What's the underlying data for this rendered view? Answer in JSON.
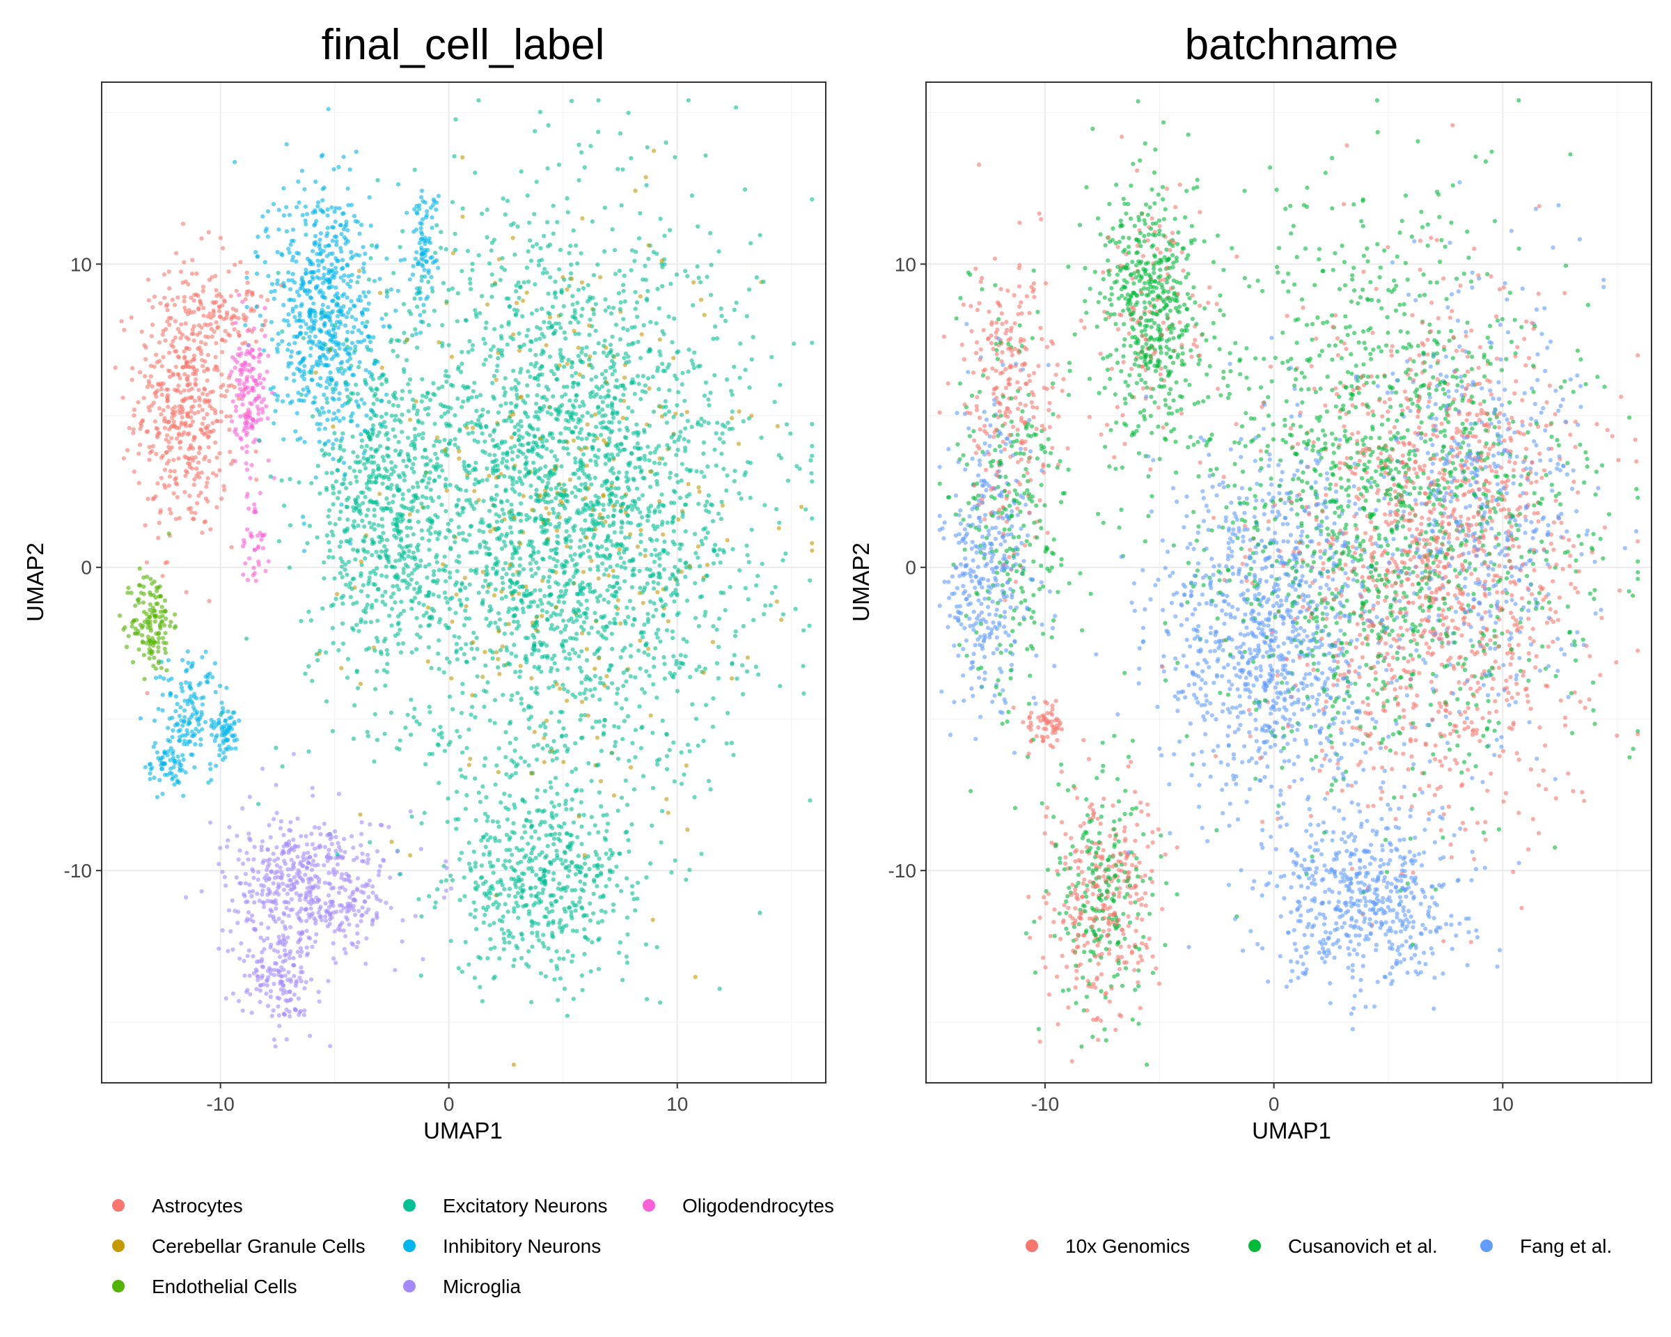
{
  "chart_data": [
    {
      "type": "scatter",
      "title": "final_cell_label",
      "xlabel": "UMAP1",
      "ylabel": "UMAP2",
      "xlim": [
        -15.2,
        16.5
      ],
      "ylim": [
        -17,
        16
      ],
      "x_ticks": [
        -10,
        0,
        10
      ],
      "y_ticks": [
        -10,
        0,
        10
      ],
      "x_tick_labels": [
        "-10",
        "0",
        "10"
      ],
      "y_tick_labels": [
        "-10",
        "0",
        "10"
      ],
      "grid": true,
      "legend_position": "bottom",
      "series": [
        {
          "name": "Astrocytes",
          "color": "#F8766D",
          "regions": [
            {
              "cx": -11.5,
              "cy": 5.5,
              "rx": 2.2,
              "ry": 4.6,
              "n": 520
            },
            {
              "cx": -9.3,
              "cy": 8.5,
              "rx": 1.3,
              "ry": 1.2,
              "n": 60
            }
          ]
        },
        {
          "name": "Cerebellar Granule Cells",
          "color": "#C49A00",
          "regions": [
            {
              "cx": 5.0,
              "cy": 1.5,
              "rx": 8.5,
              "ry": 10.0,
              "n": 300
            }
          ]
        },
        {
          "name": "Endothelial Cells",
          "color": "#53B400",
          "regions": [
            {
              "cx": -13.0,
              "cy": -1.8,
              "rx": 0.9,
              "ry": 1.7,
              "n": 140
            }
          ]
        },
        {
          "name": "Excitatory Neurons",
          "color": "#00C094",
          "regions": [
            {
              "cx": 5.0,
              "cy": 2.0,
              "rx": 8.3,
              "ry": 9.3,
              "n": 2800
            },
            {
              "cx": 4.0,
              "cy": -10.5,
              "rx": 4.0,
              "ry": 3.0,
              "n": 500
            },
            {
              "cx": -3.0,
              "cy": 2.0,
              "rx": 2.7,
              "ry": 5.5,
              "n": 550
            }
          ]
        },
        {
          "name": "Inhibitory Neurons",
          "color": "#00B6EB",
          "regions": [
            {
              "cx": -5.5,
              "cy": 8.5,
              "rx": 2.4,
              "ry": 4.5,
              "n": 650
            },
            {
              "cx": -1.1,
              "cy": 10.5,
              "rx": 0.6,
              "ry": 2.0,
              "n": 90
            },
            {
              "cx": -11.3,
              "cy": -4.8,
              "rx": 1.5,
              "ry": 2.0,
              "n": 140
            },
            {
              "cx": -9.8,
              "cy": -5.5,
              "rx": 0.6,
              "ry": 0.8,
              "n": 60
            },
            {
              "cx": -12.4,
              "cy": -6.6,
              "rx": 0.8,
              "ry": 1.0,
              "n": 60
            }
          ]
        },
        {
          "name": "Microglia",
          "color": "#A58AFF",
          "regions": [
            {
              "cx": -6.0,
              "cy": -10.5,
              "rx": 3.7,
              "ry": 2.3,
              "n": 520
            },
            {
              "cx": -7.5,
              "cy": -13.5,
              "rx": 1.7,
              "ry": 1.6,
              "n": 160
            }
          ]
        },
        {
          "name": "Oligodendrocytes",
          "color": "#FB61D7",
          "regions": [
            {
              "cx": -8.7,
              "cy": 5.5,
              "rx": 0.8,
              "ry": 2.2,
              "n": 150
            },
            {
              "cx": -8.5,
              "cy": 1.0,
              "rx": 0.6,
              "ry": 2.0,
              "n": 40
            }
          ]
        }
      ]
    },
    {
      "type": "scatter",
      "title": "batchname",
      "xlabel": "UMAP1",
      "ylabel": "UMAP2",
      "xlim": [
        -15.2,
        16.5
      ],
      "ylim": [
        -17,
        16
      ],
      "x_ticks": [
        -10,
        0,
        10
      ],
      "y_ticks": [
        -10,
        0,
        10
      ],
      "x_tick_labels": [
        "-10",
        "0",
        "10"
      ],
      "y_tick_labels": [
        "-10",
        "0",
        "10"
      ],
      "grid": true,
      "legend_position": "bottom",
      "series": [
        {
          "name": "10x Genomics",
          "color": "#F8766D",
          "regions": [
            {
              "cx": 7.0,
              "cy": 0.0,
              "rx": 6.5,
              "ry": 8.5,
              "n": 1200
            },
            {
              "cx": -11.5,
              "cy": 5.5,
              "rx": 2.2,
              "ry": 4.6,
              "n": 250
            },
            {
              "cx": -7.5,
              "cy": -11.0,
              "rx": 2.3,
              "ry": 4.0,
              "n": 300
            },
            {
              "cx": -10.0,
              "cy": -5.3,
              "rx": 0.8,
              "ry": 0.9,
              "n": 60
            },
            {
              "cx": -5.5,
              "cy": 8.5,
              "rx": 2.4,
              "ry": 4.5,
              "n": 120
            }
          ]
        },
        {
          "name": "Cusanovich et al.",
          "color": "#00BA38",
          "regions": [
            {
              "cx": -5.5,
              "cy": 8.5,
              "rx": 2.4,
              "ry": 4.5,
              "n": 500
            },
            {
              "cx": 5.0,
              "cy": 2.0,
              "rx": 8.3,
              "ry": 9.3,
              "n": 1400
            },
            {
              "cx": -11.5,
              "cy": 2.0,
              "rx": 2.5,
              "ry": 6.5,
              "n": 250
            },
            {
              "cx": -7.5,
              "cy": -11.0,
              "rx": 2.3,
              "ry": 4.0,
              "n": 220
            }
          ]
        },
        {
          "name": "Fang et al.",
          "color": "#619CFF",
          "regions": [
            {
              "cx": 0.0,
              "cy": -2.0,
              "rx": 5.0,
              "ry": 6.0,
              "n": 1000
            },
            {
              "cx": 4.0,
              "cy": -11.0,
              "rx": 4.2,
              "ry": 3.0,
              "n": 550
            },
            {
              "cx": -12.5,
              "cy": 0.0,
              "rx": 2.0,
              "ry": 5.0,
              "n": 350
            },
            {
              "cx": 9.0,
              "cy": 2.0,
              "rx": 4.5,
              "ry": 7.0,
              "n": 500
            }
          ]
        }
      ]
    }
  ]
}
